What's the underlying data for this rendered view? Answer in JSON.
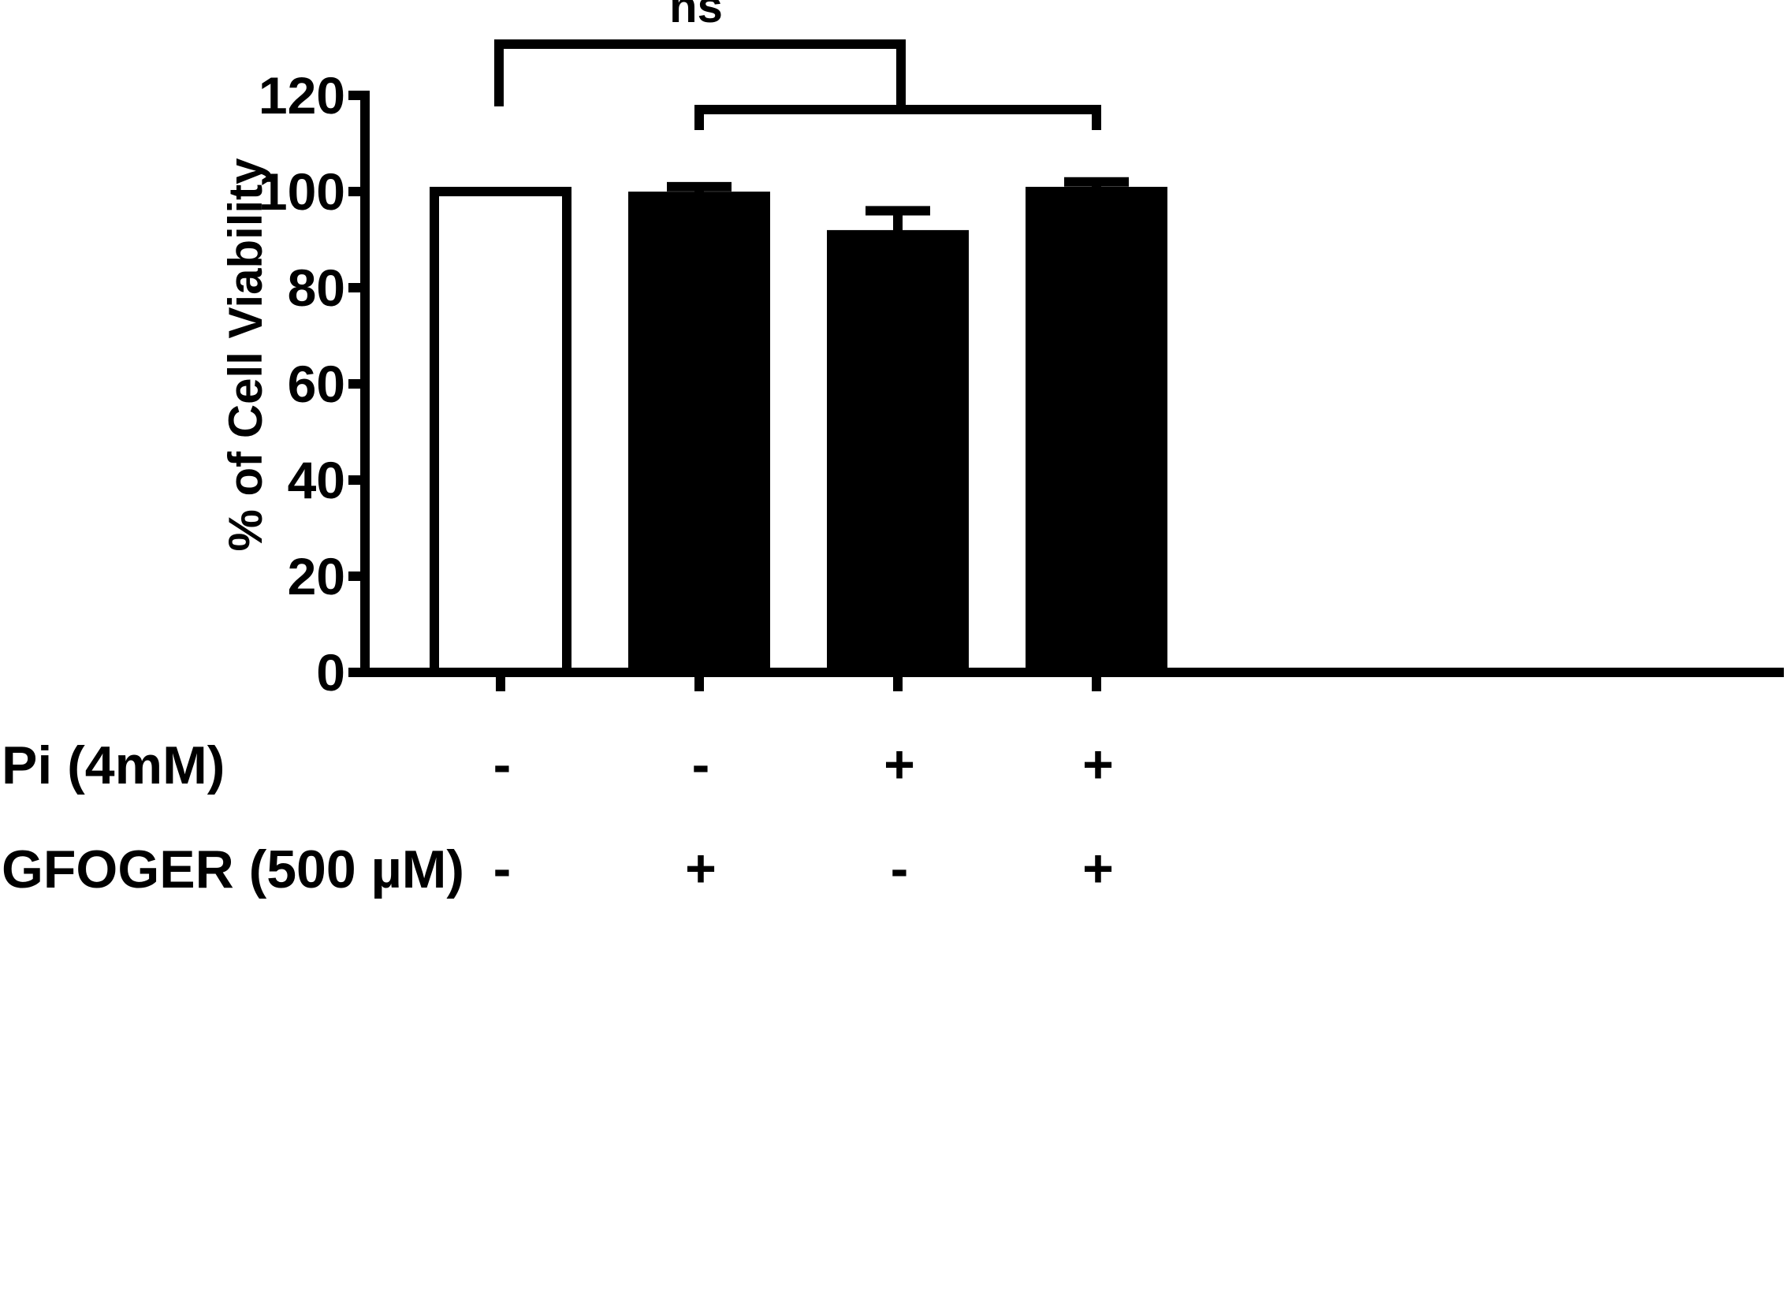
{
  "chart_data": {
    "type": "bar",
    "categories": [
      "1",
      "2",
      "3",
      "4"
    ],
    "values": [
      100,
      99,
      91,
      100
    ],
    "errors": [
      0,
      2,
      5,
      2
    ],
    "fills": [
      "#ffffff",
      "#000000",
      "#000000",
      "#000000"
    ],
    "ylabel": "% of Cell Viability",
    "ylim": [
      0,
      120
    ],
    "yticks": [
      0,
      20,
      40,
      60,
      80,
      100,
      120
    ],
    "grid": false,
    "conditions": [
      {
        "label": "Pi (4mM)",
        "values": [
          "-",
          "-",
          "+",
          "+"
        ]
      },
      {
        "label": "GFOGER (500 µM)",
        "values": [
          "-",
          "+",
          "-",
          "+"
        ]
      }
    ],
    "significance": {
      "label": "ns"
    }
  }
}
